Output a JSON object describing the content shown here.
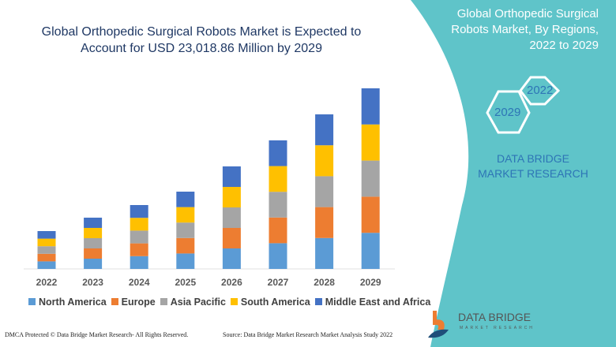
{
  "header": {
    "title": "Global Orthopedic Surgical Robots Market is Expected to Account for USD 23,018.86 Million by 2029"
  },
  "side_panel": {
    "title": "Global Orthopedic Surgical Robots Market, By Regions, 2022 to 2029",
    "hex_start": "2022",
    "hex_end": "2029",
    "brand": "DATA BRIDGE MARKET RESEARCH",
    "panel_color": "#5fc4c9"
  },
  "logo": {
    "name": "DATA BRIDGE",
    "tagline": "MARKET RESEARCH"
  },
  "footer": {
    "left": "DMCA Protected © Data Bridge Market Research- All Rights Reserved.",
    "right": "Source: Data Bridge Market Research Market Analysis Study 2022"
  },
  "chart_data": {
    "type": "bar",
    "stacked": true,
    "title": "",
    "xlabel": "",
    "ylabel": "",
    "grid": false,
    "legend_position": "bottom",
    "units": "USD Million (estimated)",
    "categories": [
      "2022",
      "2023",
      "2024",
      "2025",
      "2026",
      "2027",
      "2028",
      "2029"
    ],
    "series": [
      {
        "name": "North America",
        "color": "#5b9bd5",
        "values": [
          965,
          1307,
          1628,
          1970,
          2613,
          3277,
          3940,
          4604
        ]
      },
      {
        "name": "Europe",
        "color": "#ed7d31",
        "values": [
          965,
          1307,
          1628,
          1970,
          2613,
          3277,
          3940,
          4604
        ]
      },
      {
        "name": "Asia Pacific",
        "color": "#a5a5a5",
        "values": [
          965,
          1307,
          1628,
          1970,
          2613,
          3277,
          3940,
          4604
        ]
      },
      {
        "name": "South America",
        "color": "#ffc000",
        "values": [
          965,
          1307,
          1628,
          1970,
          2613,
          3277,
          3940,
          4604
        ]
      },
      {
        "name": "Middle East and Africa",
        "color": "#4472c4",
        "values": [
          965,
          1306,
          1630,
          1970,
          2615,
          3276,
          3940,
          4603
        ]
      }
    ]
  }
}
